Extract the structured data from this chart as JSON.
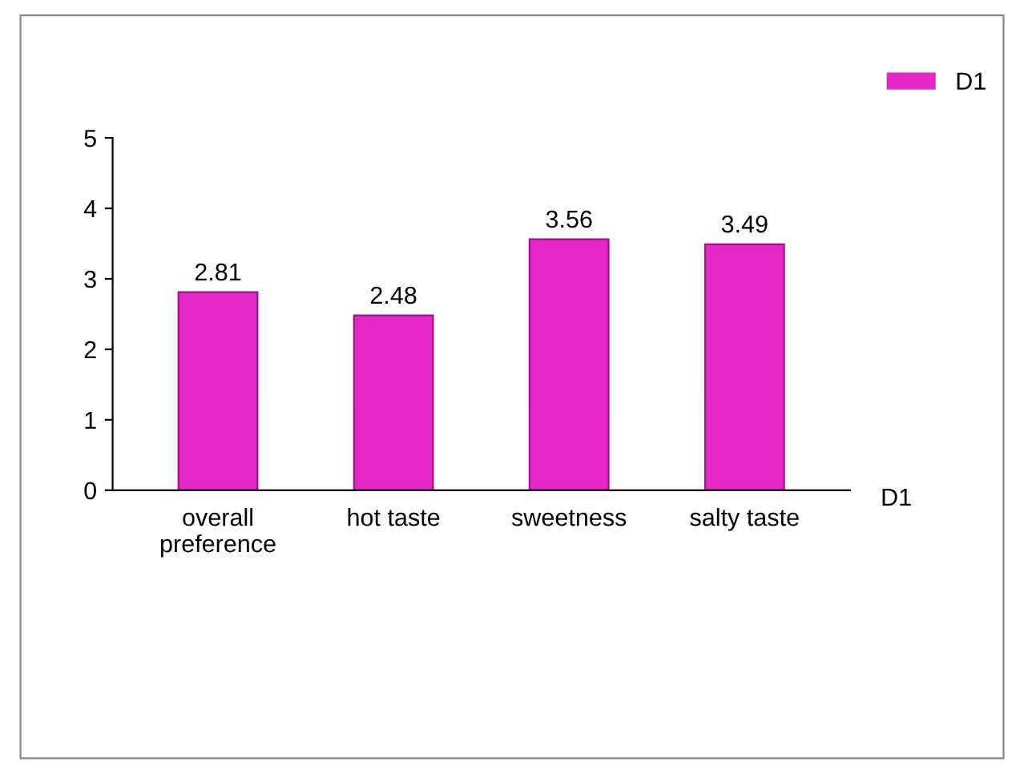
{
  "chart_data": {
    "type": "bar",
    "categories": [
      "overall\npreference",
      "hot taste",
      "sweetness",
      "salty taste"
    ],
    "series": [
      {
        "name": "D1",
        "color": "#e627c8",
        "values": [
          2.81,
          2.48,
          3.56,
          3.49
        ]
      }
    ],
    "ylim": [
      0,
      5
    ],
    "yticks": [
      0,
      1,
      2,
      3,
      4,
      5
    ],
    "data_labels": true,
    "grid": false,
    "legend": "top right",
    "annotations": [
      "D1"
    ]
  }
}
